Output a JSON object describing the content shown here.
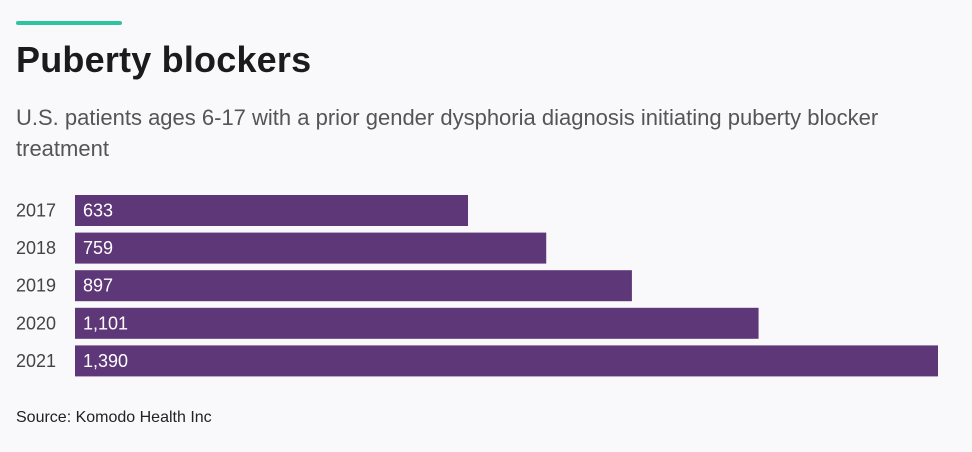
{
  "header": {
    "accent_color": "#2ec4a0",
    "title": "Puberty blockers",
    "subtitle": "U.S. patients ages 6-17 with a prior gender dysphoria diagnosis initiating puberty blocker treatment"
  },
  "footer": {
    "source": "Source: Komodo Health Inc"
  },
  "chart_data": {
    "type": "bar",
    "orientation": "horizontal",
    "title": "Puberty blockers",
    "subtitle": "U.S. patients ages 6-17 with a prior gender dysphoria diagnosis initiating puberty blocker treatment",
    "xlabel": "",
    "ylabel": "",
    "categories": [
      "2017",
      "2018",
      "2019",
      "2020",
      "2021"
    ],
    "values": [
      633,
      759,
      897,
      1101,
      1390
    ],
    "value_labels": [
      "633",
      "759",
      "897",
      "1,101",
      "1,390"
    ],
    "xlim": [
      0,
      1390
    ],
    "grid": false,
    "legend": "none",
    "bar_color": "#5e3778",
    "label_color": "#ffffff"
  }
}
